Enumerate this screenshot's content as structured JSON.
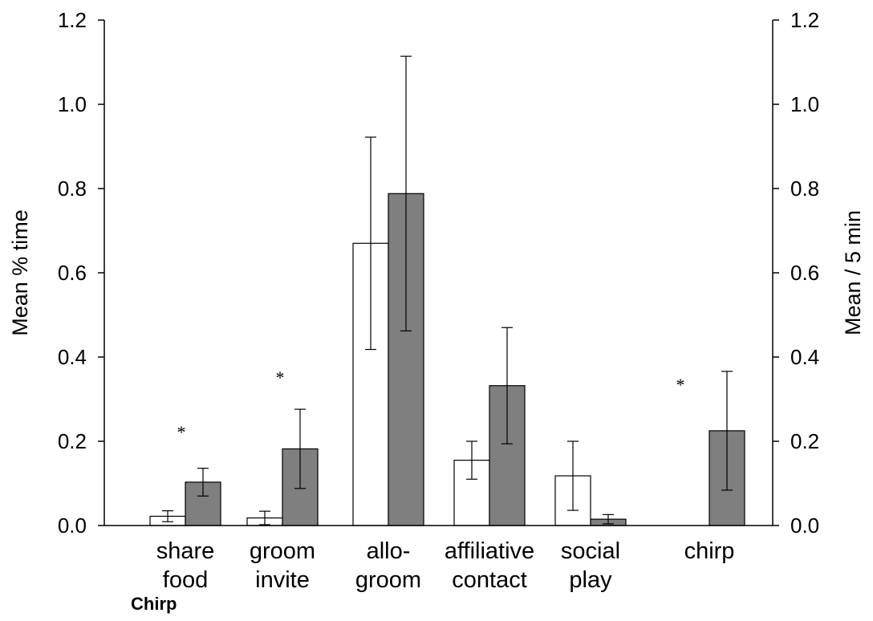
{
  "chart_data": {
    "type": "bar",
    "categories": [
      [
        "share",
        "food"
      ],
      [
        "groom",
        "invite"
      ],
      [
        "allo-",
        "groom"
      ],
      [
        "affiliative",
        "contact"
      ],
      [
        "social",
        "play"
      ],
      [
        "chirp",
        ""
      ]
    ],
    "series": [
      {
        "fill": "#ffffff",
        "values": [
          0.022,
          0.018,
          0.67,
          0.155,
          0.118,
          0.0
        ],
        "errors": [
          0.013,
          0.016,
          0.252,
          0.045,
          0.082,
          null
        ]
      },
      {
        "fill": "#7f7f7f",
        "values": [
          0.103,
          0.182,
          0.788,
          0.332,
          0.015,
          0.225
        ],
        "errors": [
          0.033,
          0.094,
          0.326,
          0.138,
          0.011,
          0.141
        ]
      }
    ],
    "significance": [
      {
        "category_index": 0,
        "symbol": "*"
      },
      {
        "category_index": 1,
        "symbol": "*"
      },
      {
        "category_index": 5,
        "symbol": "*"
      }
    ],
    "ylabel_left": "Mean % time",
    "ylabel_right": "Mean / 5 min",
    "ylim": [
      0,
      1.2
    ],
    "yticks": [
      "0.0",
      "0.2",
      "0.4",
      "0.6",
      "0.8",
      "1.0",
      "1.2"
    ],
    "grid": false
  },
  "caption": "Chirp"
}
